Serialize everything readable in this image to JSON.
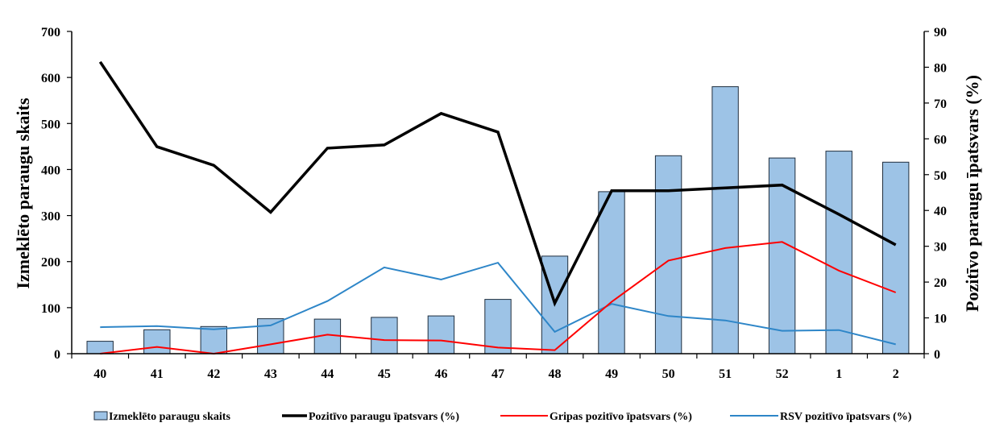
{
  "chart_data": {
    "type": "bar+line",
    "categories": [
      "40",
      "41",
      "42",
      "43",
      "44",
      "45",
      "46",
      "47",
      "48",
      "49",
      "50",
      "51",
      "52",
      "1",
      "2"
    ],
    "bars": {
      "name": "Izmeklēto paraugu skaits",
      "axis": "left",
      "color": "#9dc3e6",
      "values": [
        27,
        52,
        59,
        76,
        75,
        79,
        82,
        118,
        212,
        352,
        430,
        580,
        425,
        440,
        416
      ]
    },
    "lines": [
      {
        "name": "Pozitīvo paraugu īpatsvars (%)",
        "axis": "right",
        "color": "#000000",
        "values": [
          81.5,
          57.8,
          52.6,
          39.5,
          57.4,
          58.3,
          67.1,
          61.9,
          14.1,
          45.5,
          45.5,
          46.3,
          47.1,
          38.9,
          30.4
        ]
      },
      {
        "name": "Gripas pozitīvo  īpatsvars (%)",
        "axis": "right",
        "color": "#ff0000",
        "values": [
          0,
          1.9,
          0,
          2.6,
          5.3,
          3.8,
          3.7,
          1.7,
          1.0,
          14.5,
          26.0,
          29.5,
          31.2,
          23.2,
          17.1
        ]
      },
      {
        "name": "RSV pozitīvo īpatsvars (%)",
        "axis": "right",
        "color": "#2e86c8",
        "values": [
          7.4,
          7.7,
          6.8,
          7.9,
          14.7,
          24.1,
          20.7,
          25.4,
          6.1,
          13.9,
          10.5,
          9.3,
          6.4,
          6.6,
          2.6
        ]
      }
    ],
    "y_left": {
      "label": "Izmeklēto paraugu skaits",
      "min": 0,
      "max": 700,
      "step": 100
    },
    "y_right": {
      "label": "Pozitīvo paraugu īpatsvars (%)",
      "min": 0,
      "max": 90,
      "step": 10
    },
    "legend_position": "bottom",
    "grid": false
  }
}
